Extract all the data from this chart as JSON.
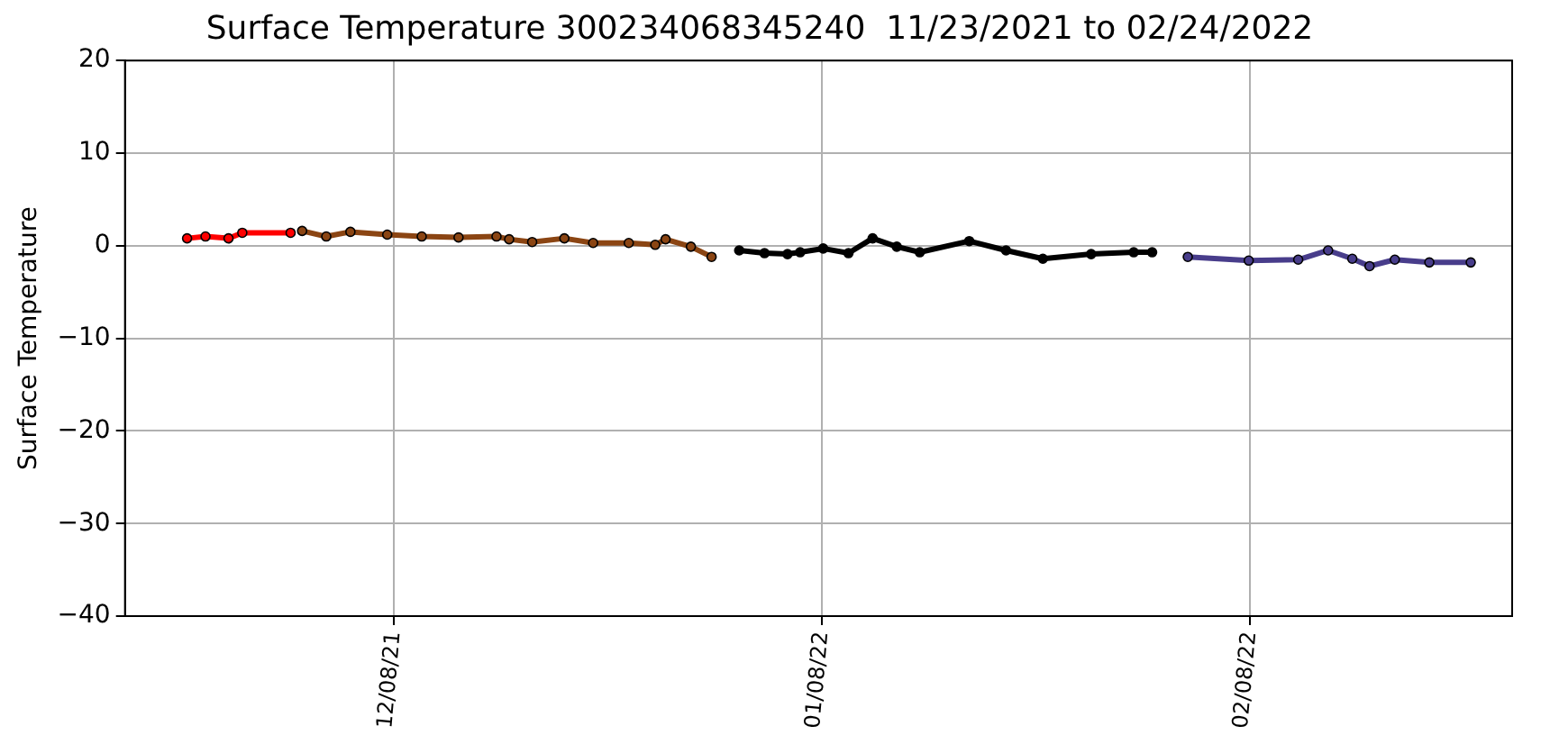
{
  "chart_data": {
    "type": "line",
    "title": "Surface Temperature 300234068345240  11/23/2021 to 02/24/2022",
    "ylabel": "Surface Temperature",
    "xlim": [
      "2021-11-18T12:00",
      "2022-02-27"
    ],
    "xticks": [
      {
        "value": "2021-12-08",
        "label": "12/08/21"
      },
      {
        "value": "2022-01-08",
        "label": "01/08/22"
      },
      {
        "value": "2022-02-08",
        "label": "02/08/22"
      }
    ],
    "ylim": [
      -40,
      20
    ],
    "yticks": [
      {
        "value": -40,
        "label": "−40"
      },
      {
        "value": -30,
        "label": "−30"
      },
      {
        "value": -20,
        "label": "−20"
      },
      {
        "value": -10,
        "label": "−10"
      },
      0,
      10,
      20
    ],
    "grid": true,
    "legend": false,
    "marker": "circle",
    "series": [
      {
        "color": "#ff0000",
        "x": [
          "2021-11-23",
          "2021-11-24T08:00",
          "2021-11-26",
          "2021-11-27",
          "2021-11-30T12:00"
        ],
        "values": [
          0.8,
          1.0,
          0.8,
          1.4,
          1.4
        ]
      },
      {
        "color": "#8b4513",
        "x": [
          "2021-12-01T08:00",
          "2021-12-03T02:00",
          "2021-12-04T20:00",
          "2021-12-07T12:00",
          "2021-12-10",
          "2021-12-12T16:00",
          "2021-12-15T10:00",
          "2021-12-16T08:00",
          "2021-12-18",
          "2021-12-20T08:00",
          "2021-12-22T10:00",
          "2021-12-25",
          "2021-12-26T22:00",
          "2021-12-27T16:00",
          "2021-12-29T12:00",
          "2021-12-31"
        ],
        "values": [
          1.6,
          1.0,
          1.5,
          1.2,
          1.0,
          0.9,
          1.0,
          0.7,
          0.4,
          0.8,
          0.3,
          0.3,
          0.1,
          0.7,
          -0.1,
          -1.2
        ]
      },
      {
        "color": "#000000",
        "x": [
          "2022-01-02",
          "2022-01-03T20:00",
          "2022-01-05T12:00",
          "2022-01-06T10:00",
          "2022-01-08T02:00",
          "2022-01-09T22:00",
          "2022-01-11T16:00",
          "2022-01-13T10:00",
          "2022-01-15T02:00",
          "2022-01-18T16:00",
          "2022-01-21T08:00",
          "2022-01-24",
          "2022-01-27T12:00",
          "2022-01-30T14:00",
          "2022-01-31T22:00"
        ],
        "values": [
          -0.5,
          -0.8,
          -0.9,
          -0.7,
          -0.3,
          -0.8,
          0.8,
          -0.1,
          -0.7,
          0.5,
          -0.5,
          -1.4,
          -0.9,
          -0.7,
          -0.7
        ]
      },
      {
        "color": "#483d8b",
        "x": [
          "2022-02-03T12:00",
          "2022-02-07T22:00",
          "2022-02-11T12:00",
          "2022-02-13T16:00",
          "2022-02-15T10:00",
          "2022-02-16T16:00",
          "2022-02-18T12:00",
          "2022-02-21",
          "2022-02-24"
        ],
        "values": [
          -1.2,
          -1.6,
          -1.5,
          -0.5,
          -1.4,
          -2.2,
          -1.5,
          -1.8,
          -1.8
        ]
      }
    ]
  }
}
